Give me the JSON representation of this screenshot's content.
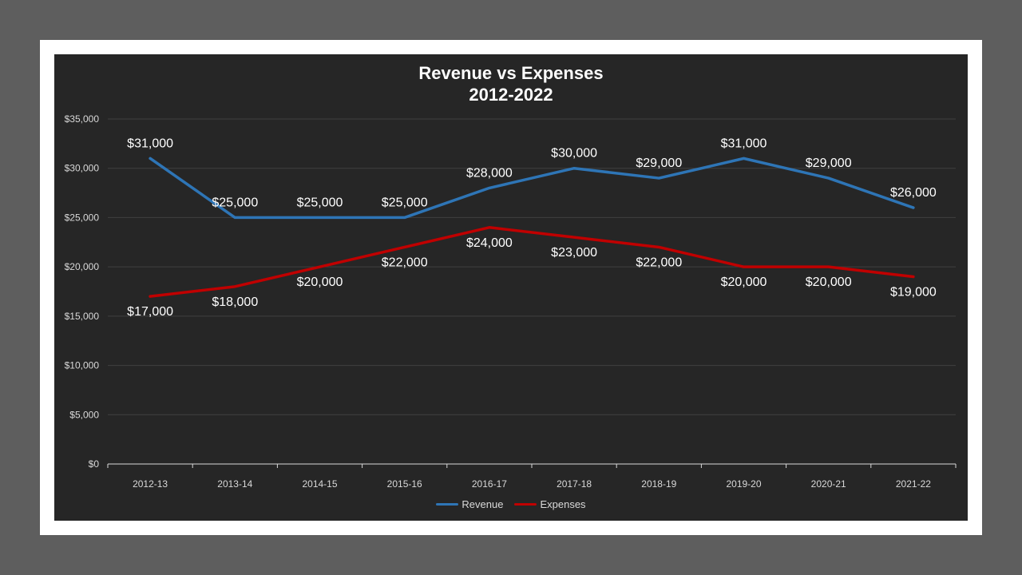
{
  "chart_data": {
    "type": "line",
    "title": "Revenue vs Expenses",
    "subtitle": "2012-2022",
    "categories": [
      "2012-13",
      "2013-14",
      "2014-15",
      "2015-16",
      "2016-17",
      "2017-18",
      "2018-19",
      "2019-20",
      "2020-21",
      "2021-22"
    ],
    "ylim": [
      0,
      35000
    ],
    "yticks": [
      0,
      5000,
      10000,
      15000,
      20000,
      25000,
      30000,
      35000
    ],
    "ytick_labels": [
      "$0",
      "$5,000",
      "$10,000",
      "$15,000",
      "$20,000",
      "$25,000",
      "$30,000",
      "$35,000"
    ],
    "grid": true,
    "legend_position": "bottom",
    "series": [
      {
        "name": "Revenue",
        "color": "#2e75b6",
        "values": [
          31000,
          25000,
          25000,
          25000,
          28000,
          30000,
          29000,
          31000,
          29000,
          26000
        ],
        "labels": [
          "$31,000",
          "$25,000",
          "$25,000",
          "$25,000",
          "$28,000",
          "$30,000",
          "$29,000",
          "$31,000",
          "$29,000",
          "$26,000"
        ],
        "label_position": "above"
      },
      {
        "name": "Expenses",
        "color": "#c00000",
        "values": [
          17000,
          18000,
          20000,
          22000,
          24000,
          23000,
          22000,
          20000,
          20000,
          19000
        ],
        "labels": [
          "$17,000",
          "$18,000",
          "$20,000",
          "$22,000",
          "$24,000",
          "$23,000",
          "$22,000",
          "$20,000",
          "$20,000",
          "$19,000"
        ],
        "label_position": "below"
      }
    ]
  }
}
